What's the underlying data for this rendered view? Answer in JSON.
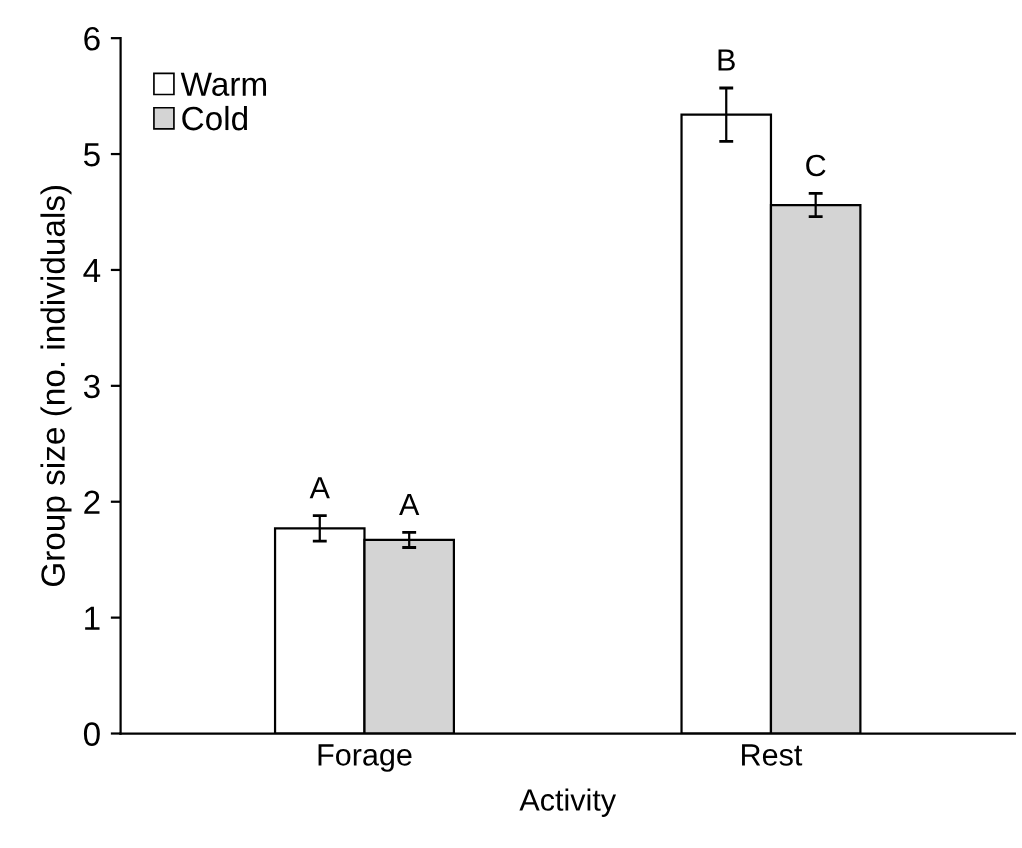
{
  "chart_data": {
    "type": "bar",
    "xlabel": "Activity",
    "ylabel": "Group size (no. individuals)",
    "categories": [
      "Forage",
      "Rest"
    ],
    "series": [
      {
        "name": "Warm",
        "color": "#ffffff",
        "values": [
          1.77,
          5.34
        ],
        "errors": [
          0.11,
          0.23
        ],
        "value_labels": [
          "A",
          "B"
        ]
      },
      {
        "name": "Cold",
        "color": "#d4d4d4",
        "values": [
          1.67,
          4.56
        ],
        "errors": [
          0.065,
          0.1
        ],
        "value_labels": [
          "A",
          "C"
        ]
      }
    ],
    "ylim": [
      0,
      6
    ],
    "yticks": [
      0,
      1,
      2,
      3,
      4,
      5,
      6
    ],
    "grid": false,
    "legend": "top left"
  }
}
